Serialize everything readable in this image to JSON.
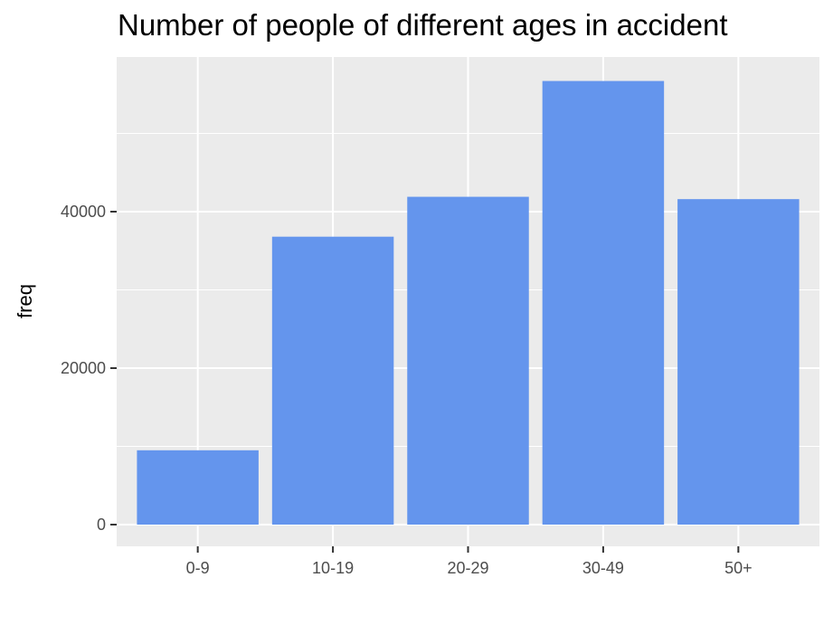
{
  "chart_data": {
    "type": "bar",
    "title": "Number of people of different ages in accident",
    "xlabel": "",
    "ylabel": "freq",
    "categories": [
      "0-9",
      "10-19",
      "20-29",
      "30-49",
      "50+"
    ],
    "values": [
      9500,
      36800,
      41900,
      56700,
      41600
    ],
    "ylim": [
      0,
      60000
    ],
    "yticks": [
      0,
      20000,
      40000
    ],
    "ytick_labels": [
      "0",
      "20000",
      "40000"
    ],
    "grid": true,
    "legend": "none",
    "colors": {
      "bar": "#6495ED",
      "panel": "#EBEBEB",
      "grid": "#FFFFFF"
    }
  }
}
